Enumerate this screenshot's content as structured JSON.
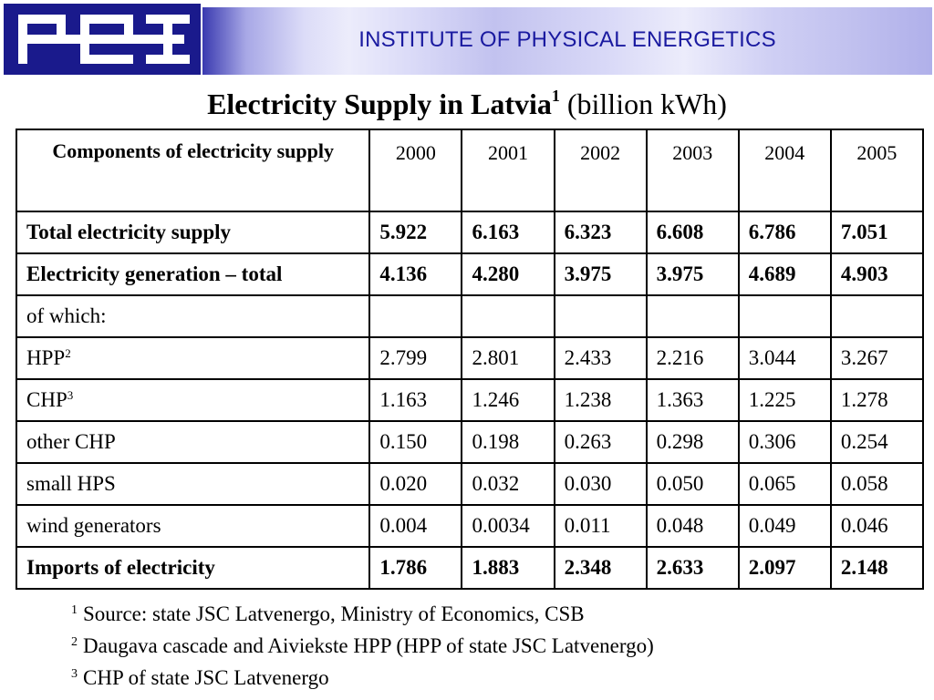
{
  "header": {
    "banner_title": "INSTITUTE OF PHYSICAL ENERGETICS",
    "logo_text": "FEI",
    "accent_color": "#1a1a8c"
  },
  "slide": {
    "title_main": "Electricity Supply in Latvia",
    "title_marker": "1",
    "title_unit": " (billion kWh)"
  },
  "table": {
    "header": {
      "components": "Components of electricity supply",
      "years": [
        "2000",
        "2001",
        "2002",
        "2003",
        "2004",
        "2005"
      ]
    },
    "rows": [
      {
        "label": "Total electricity supply",
        "marker": "",
        "bold": true,
        "values": [
          "5.922",
          "6.163",
          "6.323",
          "6.608",
          "6.786",
          "7.051"
        ]
      },
      {
        "label": "Electricity generation – total",
        "marker": "",
        "bold": true,
        "values": [
          "4.136",
          "4.280",
          "3.975",
          "3.975",
          "4.689",
          "4.903"
        ]
      },
      {
        "label": "of which:",
        "marker": "",
        "bold": false,
        "values": [
          "",
          "",
          "",
          "",
          "",
          ""
        ]
      },
      {
        "label": "HPP",
        "marker": "2",
        "bold": false,
        "values": [
          "2.799",
          "2.801",
          "2.433",
          "2.216",
          "3.044",
          "3.267"
        ]
      },
      {
        "label": "CHP",
        "marker": "3",
        "bold": false,
        "values": [
          "1.163",
          "1.246",
          "1.238",
          "1.363",
          "1.225",
          "1.278"
        ]
      },
      {
        "label": "other CHP",
        "marker": "",
        "bold": false,
        "values": [
          "0.150",
          "0.198",
          "0.263",
          "0.298",
          "0.306",
          "0.254"
        ]
      },
      {
        "label": "small HPS",
        "marker": "",
        "bold": false,
        "values": [
          "0.020",
          "0.032",
          "0.030",
          "0.050",
          "0.065",
          "0.058"
        ]
      },
      {
        "label": "wind generators",
        "marker": "",
        "bold": false,
        "values": [
          "0.004",
          "0.0034",
          "0.011",
          "0.048",
          "0.049",
          "0.046"
        ]
      },
      {
        "label": "Imports of electricity",
        "marker": "",
        "bold": true,
        "values": [
          "1.786",
          "1.883",
          "2.348",
          "2.633",
          "2.097",
          "2.148"
        ]
      }
    ]
  },
  "footnotes": [
    {
      "marker": "1",
      "text": "Source: state JSC Latvenergo, Ministry of Economics, CSB"
    },
    {
      "marker": "2",
      "text": "Daugava cascade and Aiviekste HPP (HPP of state JSC Latvenergo)"
    },
    {
      "marker": "3",
      "text": "CHP of state JSC Latvenergo"
    }
  ]
}
